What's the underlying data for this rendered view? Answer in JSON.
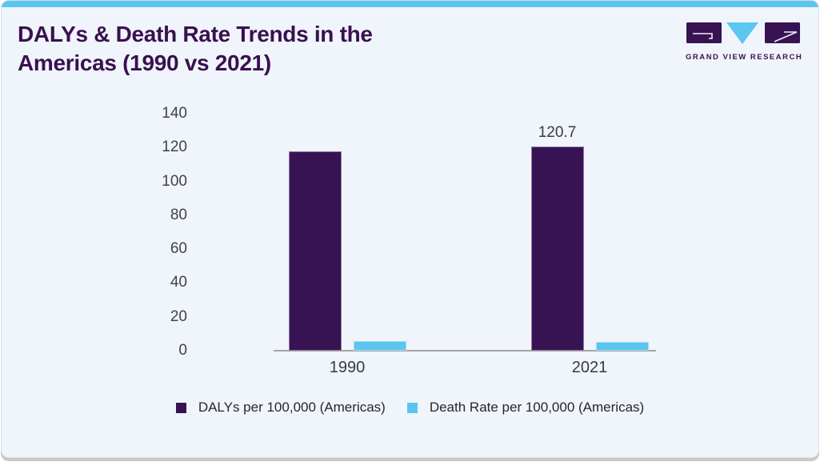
{
  "page": {
    "title_line1": "DALYs & Death Rate Trends in the",
    "title_line2": "Americas (1990 vs 2021)"
  },
  "logo": {
    "text": "GRAND VIEW RESEARCH"
  },
  "colors": {
    "accent_bar": "#5bc6f0",
    "card_background": "#eff5fa",
    "title_text": "#3a1050",
    "dalys_bar": "#371353",
    "death_rate_bar": "#5bc4ef",
    "axis_text": "#42424a",
    "axis_line": "#a5a5a5"
  },
  "chart_data": {
    "type": "bar",
    "categories": [
      "1990",
      "2021"
    ],
    "series": [
      {
        "name": "DALYs per 100,000 (Americas)",
        "values": [
          117.9,
          120.7
        ],
        "color": "#371353"
      },
      {
        "name": "Death Rate per 100,000 (Americas)",
        "values": [
          5.8,
          5.4
        ],
        "color": "#5bc4ef"
      }
    ],
    "annotations": [
      {
        "series_index": 0,
        "category_index": 1,
        "text": "120.7"
      }
    ],
    "title": "DALYs & Death Rate Trends in the Americas (1990 vs 2021)",
    "xlabel": "",
    "ylabel": "",
    "ylim": [
      0,
      140
    ],
    "ytick_step": 20,
    "grid": false,
    "legend_position": "bottom"
  }
}
